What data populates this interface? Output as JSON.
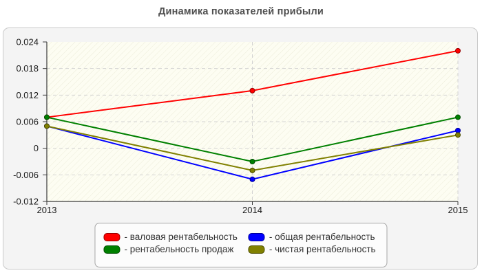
{
  "header": {
    "title": "Динамика показателей прибыли"
  },
  "chart_data": {
    "type": "line",
    "title": "Динамика показателей прибыли",
    "x_categories": [
      "2013",
      "2014",
      "2015"
    ],
    "ylim": [
      -0.012,
      0.024
    ],
    "ytick_step": 0.006,
    "ytick_labels": [
      "0.024",
      "0.018",
      "0.012",
      "0.006",
      "0",
      "-0.006",
      "-0.012"
    ],
    "grid": true,
    "legend_position": "bottom",
    "series": [
      {
        "name": "валовая рентабельность",
        "legend_label": "- валовая рентабельность",
        "color": "#ff0000",
        "border_color": "#990000",
        "values": [
          0.007,
          0.013,
          0.022
        ]
      },
      {
        "name": "общая рентабельность",
        "legend_label": "- общая рентабельность",
        "color": "#0000ff",
        "border_color": "#000099",
        "values": [
          0.005,
          -0.007,
          0.004
        ]
      },
      {
        "name": "рентабельность продаж",
        "legend_label": "- рентабельность продаж",
        "color": "#008000",
        "border_color": "#004d00",
        "values": [
          0.007,
          -0.003,
          0.007
        ]
      },
      {
        "name": "чистая рентабельность",
        "legend_label": "- чистая рентабельность",
        "color": "#808000",
        "border_color": "#4d4d00",
        "values": [
          0.005,
          -0.005,
          0.003
        ]
      }
    ]
  },
  "colors": {
    "plot_bg": "#fdfdf2",
    "plot_hatch": "#ececd9",
    "grid": "#d2d2d2",
    "axis": "#3a3a3a",
    "tick_text": "#1a1a1a"
  }
}
